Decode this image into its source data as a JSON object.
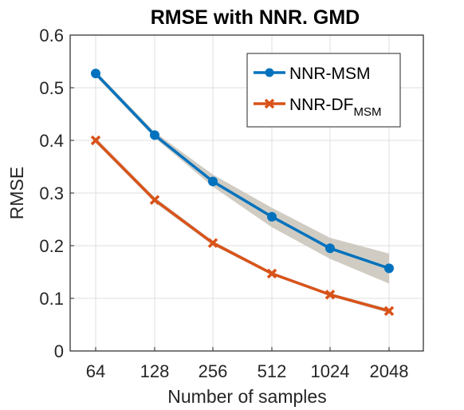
{
  "chart_data": {
    "type": "line",
    "title": "RMSE with NNR. GMD",
    "xlabel": "Number of samples",
    "ylabel": "RMSE",
    "categories": [
      "64",
      "128",
      "256",
      "512",
      "1024",
      "2048"
    ],
    "ylim": [
      0,
      0.6
    ],
    "yticks": [
      "0",
      "0.1",
      "0.2",
      "0.3",
      "0.4",
      "0.5",
      "0.6"
    ],
    "grid": true,
    "legend_position": "top-right",
    "series": [
      {
        "name": "NNR-MSM",
        "name_main": "NNR-MSM",
        "name_sub": "",
        "color": "#0072BD",
        "marker": "circle",
        "values": [
          0.527,
          0.41,
          0.322,
          0.255,
          0.195,
          0.157
        ],
        "band_lower": [
          0.522,
          0.405,
          0.312,
          0.235,
          0.175,
          0.128
        ],
        "band_upper": [
          0.532,
          0.416,
          0.335,
          0.272,
          0.215,
          0.185
        ]
      },
      {
        "name": "NNR-DFMSM",
        "name_main": "NNR-DF",
        "name_sub": "MSM",
        "color": "#D95319",
        "marker": "x",
        "values": [
          0.4,
          0.287,
          0.205,
          0.147,
          0.107,
          0.076
        ],
        "band_lower": [
          0.395,
          0.282,
          0.201,
          0.144,
          0.104,
          0.072
        ],
        "band_upper": [
          0.405,
          0.292,
          0.209,
          0.15,
          0.11,
          0.08
        ]
      }
    ],
    "band_color": "#c8c3b8"
  }
}
